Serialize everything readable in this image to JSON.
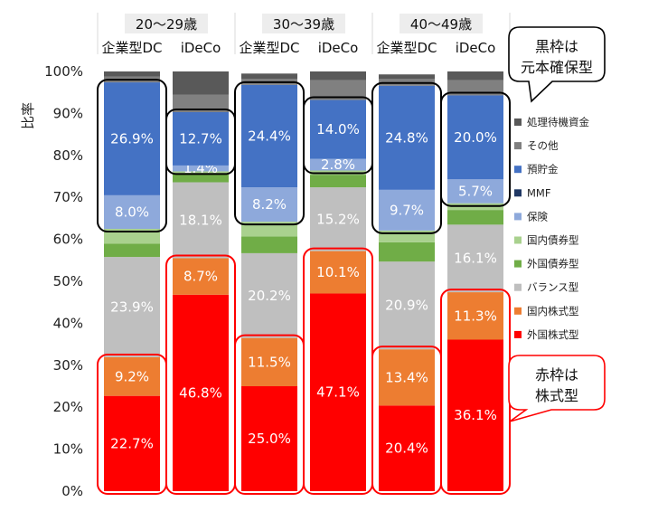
{
  "chart_data": {
    "type": "bar",
    "stacked": true,
    "ylabel": "比率",
    "ylim": [
      0,
      100
    ],
    "yticks": [
      "0%",
      "10%",
      "20%",
      "30%",
      "40%",
      "50%",
      "60%",
      "70%",
      "80%",
      "90%",
      "100%"
    ],
    "groups": [
      "20～29歳",
      "30～39歳",
      "40～49歳"
    ],
    "columns": [
      {
        "group": 0,
        "label": "企業型DC"
      },
      {
        "group": 0,
        "label": "iDeCo"
      },
      {
        "group": 1,
        "label": "企業型DC"
      },
      {
        "group": 1,
        "label": "iDeCo"
      },
      {
        "group": 2,
        "label": "企業型DC"
      },
      {
        "group": 2,
        "label": "iDeCo"
      }
    ],
    "series": [
      {
        "name": "外国株式型",
        "color": "#FF0000",
        "values": [
          22.7,
          46.8,
          25.0,
          47.1,
          20.4,
          36.1
        ],
        "labels": [
          "22.7%",
          "46.8%",
          "25.0%",
          "47.1%",
          "20.4%",
          "36.1%"
        ]
      },
      {
        "name": "国内株式型",
        "color": "#ED7D31",
        "values": [
          9.2,
          8.7,
          11.5,
          10.1,
          13.4,
          11.3
        ],
        "labels": [
          "9.2%",
          "8.7%",
          "11.5%",
          "10.1%",
          "13.4%",
          "11.3%"
        ]
      },
      {
        "name": "バランス型",
        "color": "#BFBFBF",
        "values": [
          23.9,
          18.1,
          20.2,
          15.2,
          20.9,
          16.1
        ],
        "labels": [
          "23.9%",
          "18.1%",
          "20.2%",
          "15.2%",
          "20.9%",
          "16.1%"
        ]
      },
      {
        "name": "外国債券型",
        "color": "#70AD47",
        "values": [
          3.2,
          2.0,
          4.0,
          3.0,
          4.6,
          3.5
        ],
        "labels": []
      },
      {
        "name": "国内債券型",
        "color": "#A9D18E",
        "values": [
          3.5,
          0.6,
          3.5,
          1.0,
          2.8,
          1.6
        ],
        "labels": []
      },
      {
        "name": "保険",
        "color": "#8EA9DB",
        "values": [
          8.0,
          1.4,
          8.2,
          2.8,
          9.7,
          5.7
        ],
        "labels": [
          "8.0%",
          "1.4%",
          "8.2%",
          "2.8%",
          "9.7%",
          "5.7%"
        ]
      },
      {
        "name": "MMF",
        "color": "#203864",
        "values": [
          0.0,
          0.0,
          0.0,
          0.0,
          0.0,
          0.0
        ],
        "labels": []
      },
      {
        "name": "預貯金",
        "color": "#4472C4",
        "values": [
          26.9,
          12.7,
          24.4,
          14.0,
          24.8,
          20.0
        ],
        "labels": [
          "26.9%",
          "12.7%",
          "24.4%",
          "14.0%",
          "24.8%",
          "20.0%"
        ]
      },
      {
        "name": "その他",
        "color": "#808080",
        "values": [
          1.4,
          4.2,
          1.4,
          4.7,
          1.6,
          3.6
        ],
        "labels": []
      },
      {
        "name": "処理待機資金",
        "color": "#595959",
        "values": [
          1.2,
          5.5,
          1.3,
          2.1,
          1.1,
          2.1
        ],
        "labels": []
      }
    ],
    "legend_order": [
      "処理待機資金",
      "その他",
      "預貯金",
      "MMF",
      "保険",
      "国内債券型",
      "外国債券型",
      "バランス型",
      "国内株式型",
      "外国株式型"
    ],
    "legend_position": "right",
    "highlights": {
      "black": {
        "note": "黒枠は元本確保型",
        "series": [
          "保険",
          "MMF",
          "預貯金"
        ]
      },
      "red": {
        "note": "赤枠は株式型",
        "series": [
          "外国株式型",
          "国内株式型"
        ]
      }
    }
  },
  "callouts": {
    "black_text": "黒枠は\n元本確保型",
    "red_text": "赤枠は\n株式型"
  }
}
